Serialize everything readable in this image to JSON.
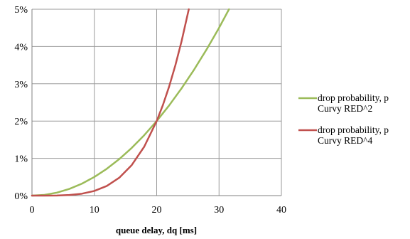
{
  "chart_data": {
    "type": "line",
    "xlabel": "queue delay, dq [ms]",
    "ylabel": "",
    "xlim": [
      0,
      40
    ],
    "ylim": [
      0,
      5
    ],
    "y_unit": "%",
    "x_ticks": [
      "0",
      "10",
      "20",
      "30",
      "40"
    ],
    "y_ticks": [
      "0%",
      "1%",
      "2%",
      "3%",
      "4%",
      "5%"
    ],
    "grid": true,
    "legend_position": "right",
    "series": [
      {
        "name": [
          "drop probability, p",
          "Curvy RED^2"
        ],
        "color": "#9bbb59",
        "x": [
          0,
          2,
          4,
          6,
          8,
          10,
          12,
          14,
          16,
          18,
          20,
          22,
          24,
          26,
          28,
          30,
          31.6
        ],
        "y": [
          0,
          0.02,
          0.08,
          0.18,
          0.32,
          0.5,
          0.72,
          0.98,
          1.28,
          1.62,
          2.0,
          2.42,
          2.88,
          3.38,
          3.92,
          4.5,
          5.0
        ]
      },
      {
        "name": [
          "drop probability, p",
          "Curvy RED^4"
        ],
        "color": "#c0504d",
        "x": [
          0,
          2,
          4,
          6,
          8,
          10,
          12,
          14,
          16,
          18,
          20,
          21,
          22,
          23,
          24,
          25.15
        ],
        "y": [
          0,
          0.0002,
          0.0032,
          0.0162,
          0.0512,
          0.125,
          0.2592,
          0.4802,
          0.8192,
          1.3122,
          2.0,
          2.431,
          2.928,
          3.498,
          4.147,
          5.0
        ]
      }
    ]
  }
}
